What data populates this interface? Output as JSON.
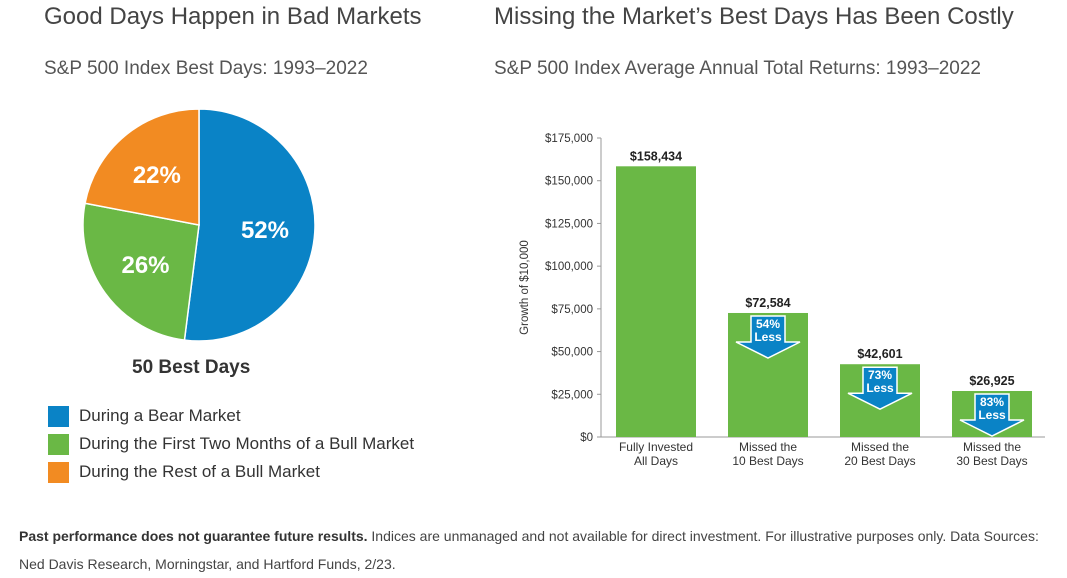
{
  "colors": {
    "bear": "#0a83c6",
    "bull_first": "#6ab845",
    "bull_rest": "#f28b22",
    "bar": "#6ab845",
    "arrow": "#0a83c6",
    "axis": "#999999",
    "text": "#333333"
  },
  "chart_data": [
    {
      "type": "pie",
      "title": "Good Days Happen in Bad Markets",
      "subtitle": "S&P 500 Index Best Days: 1993–2022",
      "center_label": "50 Best Days",
      "slices": [
        {
          "name": "During a Bear Market",
          "value": 52,
          "label": "52%",
          "color": "#0a83c6"
        },
        {
          "name": "During the First Two Months of a Bull Market",
          "value": 26,
          "label": "26%",
          "color": "#6ab845"
        },
        {
          "name": "During the Rest of a Bull Market",
          "value": 22,
          "label": "22%",
          "color": "#f28b22"
        }
      ],
      "legend_placement": "bottom-left"
    },
    {
      "type": "bar",
      "title": "Missing the Market’s Best Days Has Been Costly",
      "subtitle": "S&P 500 Index Average Annual Total Returns: 1993–2022",
      "ylabel": "Growth of $10,000",
      "ylim": [
        0,
        175000
      ],
      "yticks": [
        0,
        25000,
        50000,
        75000,
        100000,
        125000,
        150000,
        175000
      ],
      "ytick_labels": [
        "$0",
        "$25,000",
        "$50,000",
        "$75,000",
        "$100,000",
        "$125,000",
        "$150,000",
        "$175,000"
      ],
      "grid": false,
      "categories": [
        [
          "Fully Invested",
          "All Days"
        ],
        [
          "Missed the",
          "10 Best Days"
        ],
        [
          "Missed the",
          "20 Best Days"
        ],
        [
          "Missed the",
          "30 Best Days"
        ]
      ],
      "values": [
        158434,
        72584,
        42601,
        26925
      ],
      "value_labels": [
        "$158,434",
        "$72,584",
        "$42,601",
        "$26,925"
      ],
      "annotations": [
        null,
        [
          "54%",
          "Less"
        ],
        [
          "73%",
          "Less"
        ],
        [
          "83%",
          "Less"
        ]
      ]
    }
  ],
  "footer": {
    "bold": "Past performance does not guarantee future results.",
    "text": " Indices are unmanaged and not available for direct investment. For illustrative purposes only. Data Sources: Ned Davis Research, Morningstar, and Hartford Funds, 2/23."
  }
}
